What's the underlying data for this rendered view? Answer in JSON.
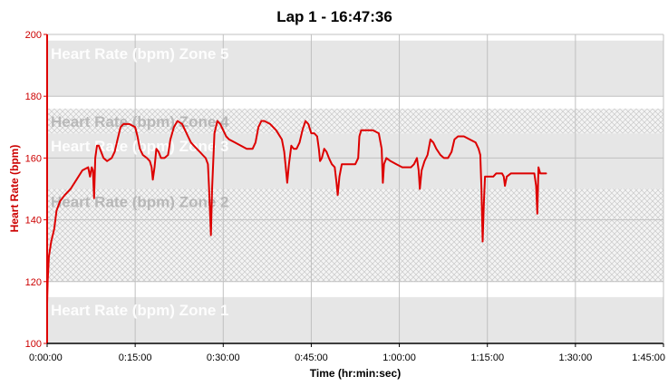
{
  "chart_data": {
    "type": "line",
    "title": "Lap 1 - 16:47:36",
    "xlabel": "Time (hr:min:sec)",
    "ylabel": "Heart Rate (bpm)",
    "xlim": [
      0,
      105
    ],
    "ylim": [
      100,
      200
    ],
    "x_unit": "minutes",
    "xticks": [
      0,
      15,
      30,
      45,
      60,
      75,
      90,
      105
    ],
    "xtick_labels": [
      "0:00:00",
      "0:15:00",
      "0:30:00",
      "0:45:00",
      "1:00:00",
      "1:15:00",
      "1:30:00",
      "1:45:00"
    ],
    "yticks": [
      100,
      120,
      140,
      160,
      180,
      200
    ],
    "ytick_labels": [
      "100",
      "120",
      "140",
      "160",
      "180",
      "200"
    ],
    "grid": true,
    "zones": [
      {
        "label": "Heart Rate (bpm) Zone 1",
        "range": [
          100,
          115
        ],
        "pattern": "solid"
      },
      {
        "label": "Heart Rate (bpm) Zone 2",
        "range": [
          120,
          150
        ],
        "pattern": "hatched"
      },
      {
        "label": "Heart Rate (bpm) Zone 3",
        "range": [
          150,
          168
        ],
        "pattern": "solid"
      },
      {
        "label": "Heart Rate (bpm) Zone 4",
        "range": [
          168,
          176
        ],
        "pattern": "hatched"
      },
      {
        "label": "Heart Rate (bpm) Zone 5",
        "range": [
          180,
          198
        ],
        "pattern": "solid"
      }
    ],
    "series": [
      {
        "color": "#dd0000",
        "points": [
          [
            0.0,
            113
          ],
          [
            0.1,
            120
          ],
          [
            0.3,
            128
          ],
          [
            0.7,
            133
          ],
          [
            1.2,
            137
          ],
          [
            1.6,
            143
          ],
          [
            2.2,
            146
          ],
          [
            3.0,
            148
          ],
          [
            4.0,
            150
          ],
          [
            5.0,
            153
          ],
          [
            6.0,
            156
          ],
          [
            7.0,
            157
          ],
          [
            7.3,
            154
          ],
          [
            7.6,
            157
          ],
          [
            7.8,
            156
          ],
          [
            8.0,
            147
          ],
          [
            8.2,
            160
          ],
          [
            8.5,
            164
          ],
          [
            8.8,
            164
          ],
          [
            9.2,
            162
          ],
          [
            9.6,
            160
          ],
          [
            10.2,
            159
          ],
          [
            11.0,
            160
          ],
          [
            11.5,
            162
          ],
          [
            12.0,
            166
          ],
          [
            12.5,
            170
          ],
          [
            13.0,
            171
          ],
          [
            14.0,
            171
          ],
          [
            15.0,
            170
          ],
          [
            15.4,
            167
          ],
          [
            15.8,
            163
          ],
          [
            16.3,
            161
          ],
          [
            17.0,
            160
          ],
          [
            17.5,
            159
          ],
          [
            17.8,
            157
          ],
          [
            18.0,
            153
          ],
          [
            18.3,
            157
          ],
          [
            18.6,
            163
          ],
          [
            19.0,
            162
          ],
          [
            19.4,
            160
          ],
          [
            20.0,
            160
          ],
          [
            20.6,
            161
          ],
          [
            21.0,
            166
          ],
          [
            21.6,
            170
          ],
          [
            22.2,
            172
          ],
          [
            23.0,
            171
          ],
          [
            23.5,
            169
          ],
          [
            24.0,
            167
          ],
          [
            24.5,
            165
          ],
          [
            25.0,
            164
          ],
          [
            25.5,
            163
          ],
          [
            26.0,
            162
          ],
          [
            26.5,
            161
          ],
          [
            27.0,
            160
          ],
          [
            27.4,
            158
          ],
          [
            27.6,
            150
          ],
          [
            27.9,
            135
          ],
          [
            28.1,
            150
          ],
          [
            28.5,
            168
          ],
          [
            29.0,
            172
          ],
          [
            29.5,
            171
          ],
          [
            30.0,
            169
          ],
          [
            30.5,
            167
          ],
          [
            31.0,
            166
          ],
          [
            32.0,
            165
          ],
          [
            33.0,
            164
          ],
          [
            34.0,
            163
          ],
          [
            35.0,
            163
          ],
          [
            35.5,
            165
          ],
          [
            36.0,
            170
          ],
          [
            36.5,
            172
          ],
          [
            37.0,
            172
          ],
          [
            38.0,
            171
          ],
          [
            39.0,
            169
          ],
          [
            40.0,
            166
          ],
          [
            40.4,
            162
          ],
          [
            40.7,
            156
          ],
          [
            40.9,
            152
          ],
          [
            41.2,
            158
          ],
          [
            41.6,
            164
          ],
          [
            42.0,
            163
          ],
          [
            42.5,
            163
          ],
          [
            43.0,
            165
          ],
          [
            43.5,
            169
          ],
          [
            44.0,
            172
          ],
          [
            44.5,
            171
          ],
          [
            45.0,
            168
          ],
          [
            45.5,
            168
          ],
          [
            46.0,
            167
          ],
          [
            46.3,
            163
          ],
          [
            46.5,
            159
          ],
          [
            46.8,
            160
          ],
          [
            47.2,
            163
          ],
          [
            47.6,
            162
          ],
          [
            48.0,
            160
          ],
          [
            48.5,
            158
          ],
          [
            49.0,
            157
          ],
          [
            49.3,
            152
          ],
          [
            49.5,
            148
          ],
          [
            49.8,
            154
          ],
          [
            50.2,
            158
          ],
          [
            51.0,
            158
          ],
          [
            52.0,
            158
          ],
          [
            52.5,
            158
          ],
          [
            53.0,
            160
          ],
          [
            53.2,
            167
          ],
          [
            53.5,
            169
          ],
          [
            54.5,
            169
          ],
          [
            55.5,
            169
          ],
          [
            56.5,
            168
          ],
          [
            57.0,
            163
          ],
          [
            57.2,
            152
          ],
          [
            57.4,
            158
          ],
          [
            57.8,
            160
          ],
          [
            58.5,
            159
          ],
          [
            59.5,
            158
          ],
          [
            60.5,
            157
          ],
          [
            61.5,
            157
          ],
          [
            62.0,
            157
          ],
          [
            62.5,
            158
          ],
          [
            63.0,
            160
          ],
          [
            63.3,
            156
          ],
          [
            63.5,
            150
          ],
          [
            63.8,
            156
          ],
          [
            64.3,
            159
          ],
          [
            64.8,
            161
          ],
          [
            65.3,
            166
          ],
          [
            65.8,
            165
          ],
          [
            66.3,
            163
          ],
          [
            67.0,
            161
          ],
          [
            67.6,
            160
          ],
          [
            68.3,
            160
          ],
          [
            68.9,
            162
          ],
          [
            69.4,
            166
          ],
          [
            70.0,
            167
          ],
          [
            71.0,
            167
          ],
          [
            72.0,
            166
          ],
          [
            73.0,
            165
          ],
          [
            73.5,
            163
          ],
          [
            73.8,
            161
          ],
          [
            74.0,
            150
          ],
          [
            74.2,
            133
          ],
          [
            74.4,
            145
          ],
          [
            74.6,
            154
          ],
          [
            75.0,
            154
          ],
          [
            75.5,
            154
          ],
          [
            76.0,
            154
          ],
          [
            76.5,
            155
          ],
          [
            77.0,
            155
          ],
          [
            77.5,
            155
          ],
          [
            77.8,
            154
          ],
          [
            78.0,
            151
          ],
          [
            78.3,
            154
          ],
          [
            79.0,
            155
          ],
          [
            80.0,
            155
          ],
          [
            81.0,
            155
          ],
          [
            82.0,
            155
          ],
          [
            83.0,
            155
          ],
          [
            83.3,
            151
          ],
          [
            83.5,
            142
          ],
          [
            83.7,
            157
          ],
          [
            84.0,
            155
          ],
          [
            84.5,
            155
          ],
          [
            85.0,
            155
          ]
        ]
      }
    ]
  }
}
